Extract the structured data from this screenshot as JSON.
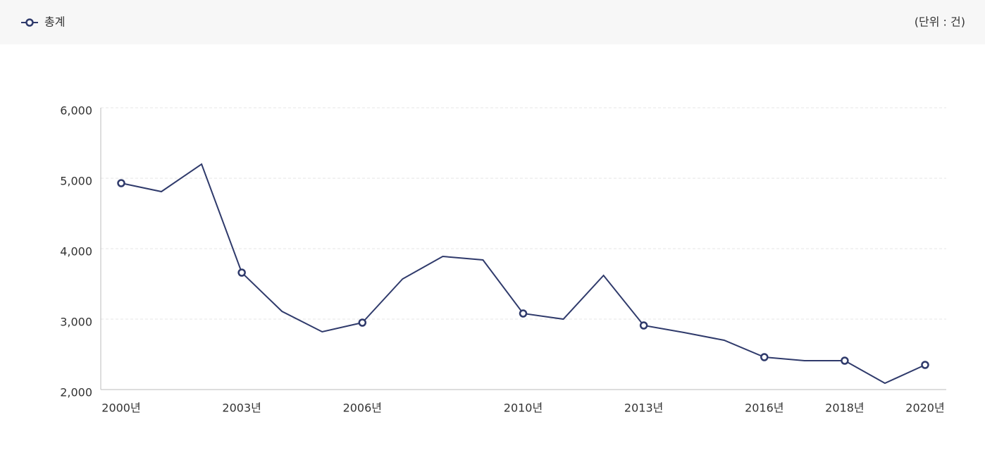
{
  "chart_data": {
    "type": "line",
    "unit": "(단위 : 건)",
    "categories": [
      "2000년",
      null,
      null,
      "2003년",
      null,
      null,
      "2006년",
      null,
      null,
      null,
      "2010년",
      null,
      null,
      "2013년",
      null,
      null,
      "2016년",
      null,
      "2018년",
      null,
      "2020년"
    ],
    "series": [
      {
        "name": "총계",
        "color": "#2f3a6b",
        "values": [
          4930,
          4810,
          5200,
          3660,
          3110,
          2820,
          2950,
          3570,
          3890,
          3840,
          3080,
          3000,
          3620,
          2910,
          2810,
          2700,
          2460,
          2410,
          2410,
          2090,
          2350
        ]
      }
    ],
    "ylim": [
      2000,
      6000
    ],
    "yticks": [
      {
        "value": 2000,
        "label": "2,000"
      },
      {
        "value": 3000,
        "label": "3,000"
      },
      {
        "value": 4000,
        "label": "4,000"
      },
      {
        "value": 5000,
        "label": "5,000"
      },
      {
        "value": 6000,
        "label": "6,000"
      }
    ],
    "grid": true
  }
}
